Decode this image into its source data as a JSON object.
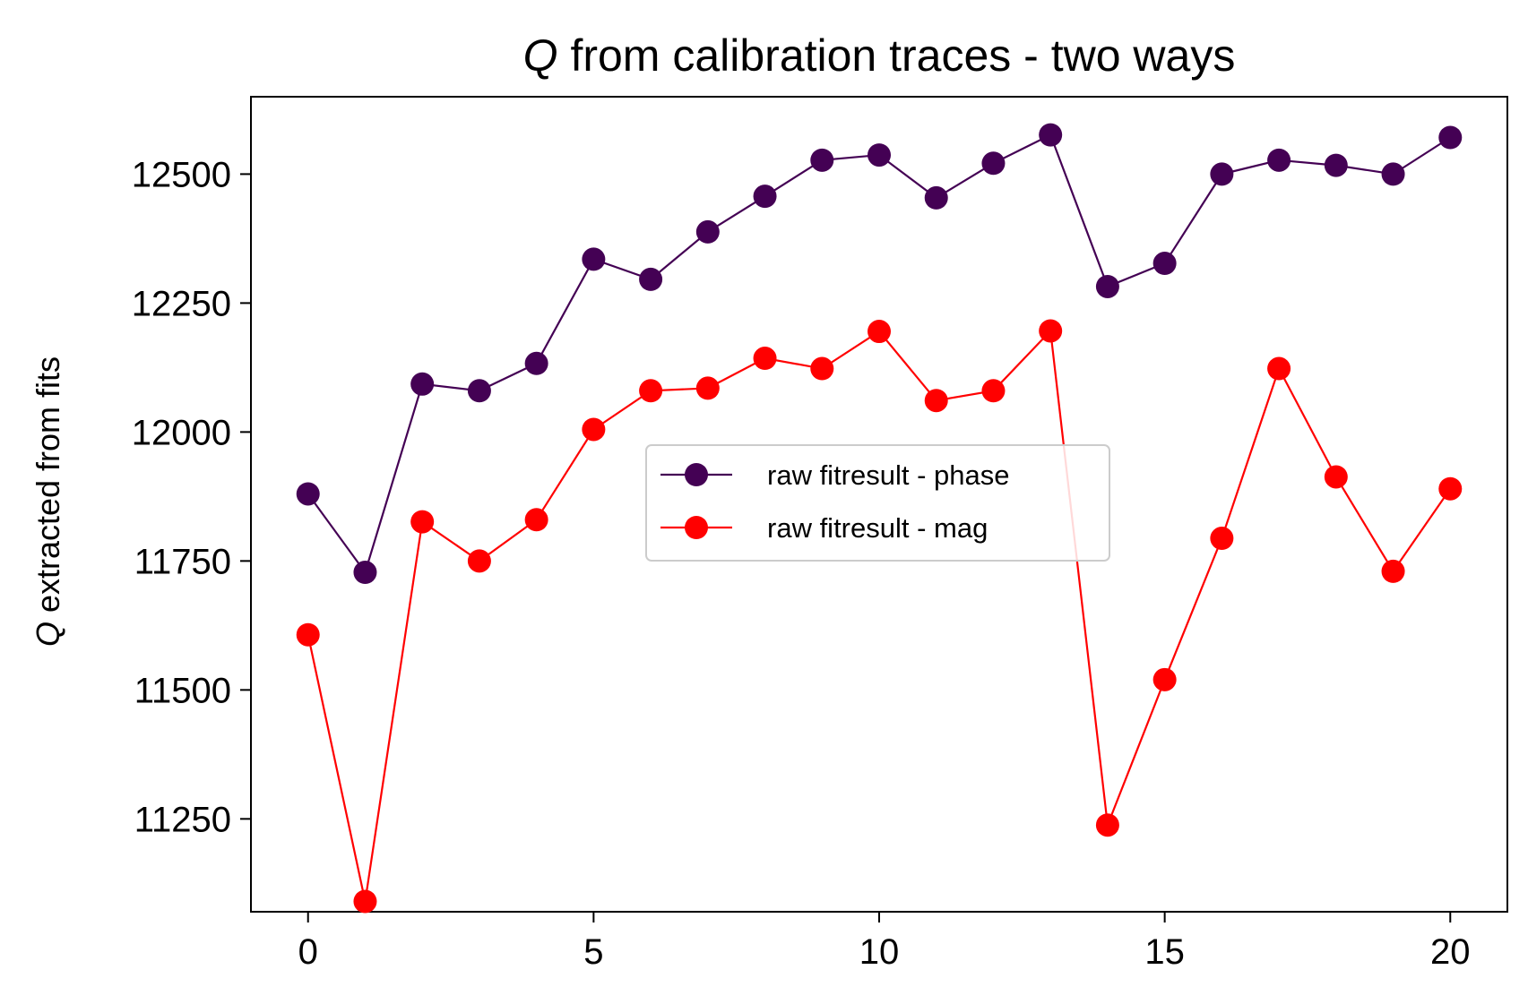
{
  "chart_data": {
    "type": "line",
    "title_symbol": "Q",
    "title_text": " from calibration traces - two ways",
    "ylabel_symbol": "Q",
    "ylabel_text": " extracted from fits",
    "xlabel": "",
    "xlim": [
      -1,
      21
    ],
    "ylim": [
      11070,
      12650
    ],
    "xticks": [
      0,
      5,
      10,
      15,
      20
    ],
    "yticks": [
      11250,
      11500,
      11750,
      12000,
      12250,
      12500
    ],
    "grid": false,
    "legend_position": "center",
    "x": [
      0,
      1,
      2,
      3,
      4,
      5,
      6,
      7,
      8,
      9,
      10,
      11,
      12,
      13,
      14,
      15,
      16,
      17,
      18,
      19,
      20
    ],
    "series": [
      {
        "name": "raw fitresult - phase",
        "color": "#440154",
        "values": [
          11880,
          11728,
          12093,
          12080,
          12133,
          12335,
          12296,
          12388,
          12457,
          12527,
          12537,
          12454,
          12521,
          12576,
          12282,
          12327,
          12500,
          12527,
          12517,
          12500,
          12571
        ]
      },
      {
        "name": "raw fitresult - mag",
        "color": "#ff0000",
        "values": [
          11607,
          11090,
          11826,
          11750,
          11830,
          12005,
          12080,
          12085,
          12143,
          12123,
          12195,
          12061,
          12080,
          12196,
          11238,
          11520,
          11794,
          12123,
          11913,
          11730,
          11890
        ]
      }
    ]
  }
}
